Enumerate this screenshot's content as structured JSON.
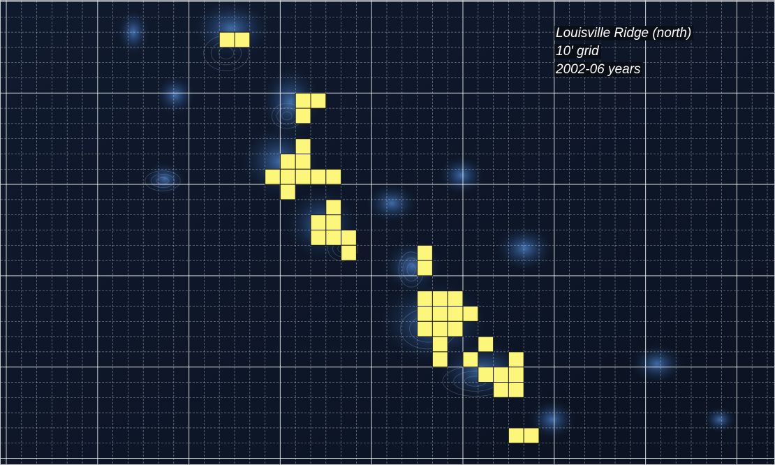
{
  "map": {
    "title": "Louisville Ridge (north)",
    "grid_label": "10' grid",
    "period_label": "2002-06 years",
    "colors": {
      "ocean": "#0d1525",
      "ridge_glow": "#3d6aa8",
      "cell_fill": "#fcf67a",
      "cell_stroke": "#1a1a1a",
      "grid_minor": "#ffffff",
      "grid_major": "#ffffff"
    },
    "occupied_cells": [
      [
        14,
        2
      ],
      [
        15,
        2
      ],
      [
        19,
        6
      ],
      [
        20,
        6
      ],
      [
        19,
        7
      ],
      [
        19,
        9
      ],
      [
        18,
        10
      ],
      [
        19,
        10
      ],
      [
        17,
        11
      ],
      [
        18,
        11
      ],
      [
        19,
        11
      ],
      [
        20,
        11
      ],
      [
        21,
        11
      ],
      [
        18,
        12
      ],
      [
        21,
        13
      ],
      [
        20,
        14
      ],
      [
        21,
        14
      ],
      [
        20,
        15
      ],
      [
        21,
        15
      ],
      [
        22,
        15
      ],
      [
        22,
        16
      ],
      [
        27,
        16
      ],
      [
        27,
        17
      ],
      [
        27,
        19
      ],
      [
        28,
        19
      ],
      [
        29,
        19
      ],
      [
        27,
        20
      ],
      [
        28,
        20
      ],
      [
        29,
        20
      ],
      [
        30,
        20
      ],
      [
        27,
        21
      ],
      [
        28,
        21
      ],
      [
        29,
        21
      ],
      [
        28,
        22
      ],
      [
        31,
        22
      ],
      [
        28,
        23
      ],
      [
        30,
        23
      ],
      [
        33,
        23
      ],
      [
        31,
        24
      ],
      [
        32,
        24
      ],
      [
        33,
        24
      ],
      [
        32,
        25
      ],
      [
        33,
        25
      ],
      [
        33,
        28
      ],
      [
        34,
        28
      ]
    ]
  }
}
